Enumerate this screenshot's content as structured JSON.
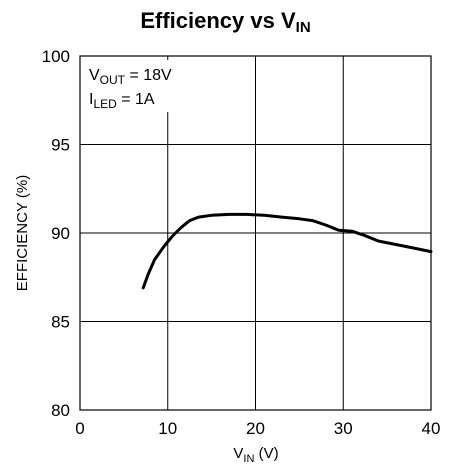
{
  "chart_data": {
    "type": "line",
    "title": {
      "main": "Efficiency vs V",
      "sub": "IN"
    },
    "xlabel": {
      "main": "V",
      "sub": "IN",
      "rest": " (V)"
    },
    "ylabel": "EFFICIENCY (%)",
    "xlim": [
      0,
      40
    ],
    "ylim": [
      80,
      100
    ],
    "x_ticks": [
      0,
      10,
      20,
      30,
      40
    ],
    "y_ticks": [
      80,
      85,
      90,
      95,
      100
    ],
    "grid": true,
    "annotations": [
      {
        "main": "V",
        "sub": "OUT",
        "rest": " = 18V"
      },
      {
        "main": "I",
        "sub": "LED",
        "rest": " = 1A"
      }
    ],
    "series": [
      {
        "x": [
          7.2,
          7.8,
          8.5,
          9.5,
          10.5,
          11.5,
          12.5,
          13.5,
          15,
          17,
          19,
          21,
          23,
          25,
          26.5,
          28,
          29.5,
          31,
          32.5,
          34,
          36,
          38,
          40
        ],
        "y": [
          86.9,
          87.7,
          88.5,
          89.2,
          89.8,
          90.3,
          90.7,
          90.9,
          91.0,
          91.05,
          91.05,
          91.0,
          90.9,
          90.8,
          90.7,
          90.45,
          90.15,
          90.1,
          89.85,
          89.55,
          89.35,
          89.15,
          88.95
        ]
      }
    ]
  }
}
